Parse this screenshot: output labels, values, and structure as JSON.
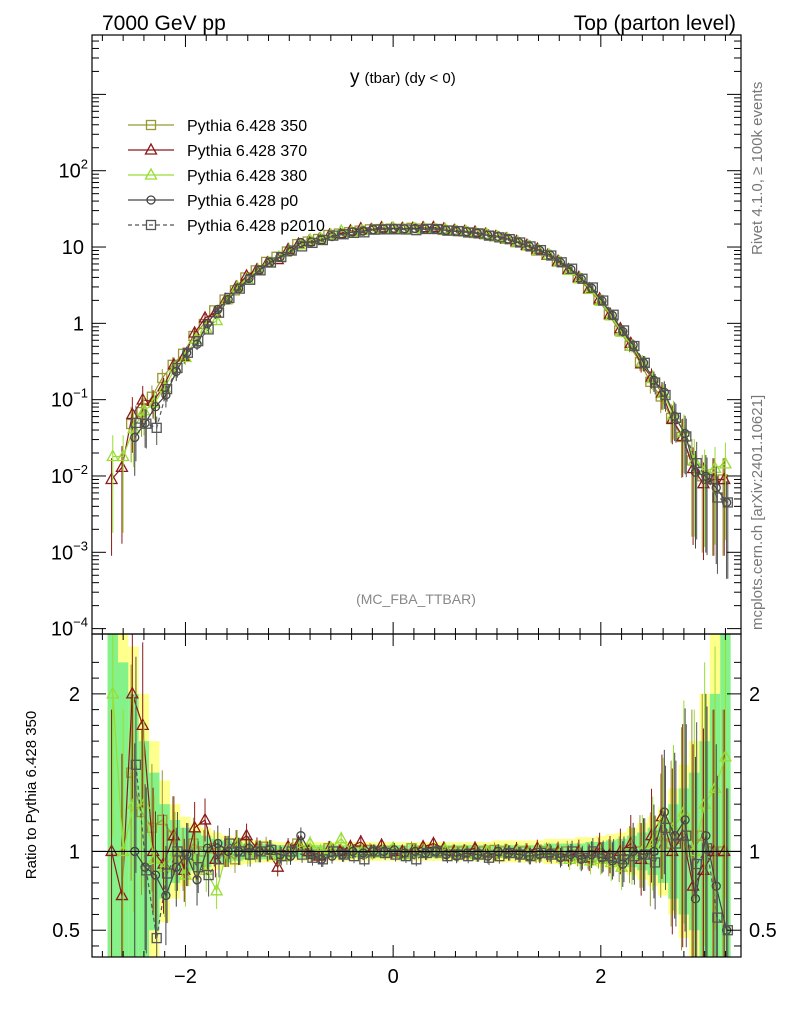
{
  "header": {
    "left": "7000 GeV pp",
    "right": "Top (parton level)"
  },
  "side_labels": {
    "rivet": "Rivet 4.1.0, ≥ 100k events",
    "source": "mcplots.cern.ch [arXiv:2401.10621]"
  },
  "chart_data": {
    "type": "line",
    "title": "y (tbar) (dy < 0)",
    "title_main": "y",
    "title_rest": "(tbar) (dy < 0)",
    "watermark": "(MC_FBA_TTBAR)",
    "x_range": [
      -2.9,
      3.35
    ],
    "x_ticks": [
      -2,
      0,
      2
    ],
    "x_tick_labels": [
      "−2",
      "0",
      "2"
    ],
    "main_panel": {
      "yscale": "log",
      "ylim": [
        8.5e-05,
        6000
      ],
      "y_ticks": [
        0.0001,
        0.001,
        0.01,
        0.1,
        1,
        10,
        100
      ],
      "y_tick_labels": [
        {
          "base": "10",
          "exp": "−4"
        },
        {
          "base": "10",
          "exp": "−3"
        },
        {
          "base": "10",
          "exp": "−2"
        },
        {
          "base": "10",
          "exp": "−1"
        },
        {
          "base": "1",
          "exp": ""
        },
        {
          "base": "10",
          "exp": ""
        },
        {
          "base": "10",
          "exp": "2"
        }
      ]
    },
    "ratio_panel": {
      "ylabel": "Ratio to Pythia 6.428 350",
      "ylim": [
        0.33,
        2.38
      ],
      "y_ticks": [
        0.5,
        1,
        2
      ],
      "y_tick_labels": [
        "0.5",
        "1",
        "2"
      ],
      "reference_line": 1
    },
    "legend": {
      "position": "top-left",
      "entries": [
        {
          "label": "Pythia 6.428 350",
          "color": "#999933",
          "marker": "square",
          "dash": "solid"
        },
        {
          "label": "Pythia 6.428 370",
          "color": "#8b1a1a",
          "marker": "triangle",
          "dash": "solid"
        },
        {
          "label": "Pythia 6.428 380",
          "color": "#99dd33",
          "marker": "triangle",
          "dash": "solid"
        },
        {
          "label": "Pythia 6.428 p0",
          "color": "#444444",
          "marker": "circle",
          "dash": "solid"
        },
        {
          "label": "Pythia 6.428 p2010",
          "color": "#555555",
          "marker": "square",
          "dash": "dashed"
        }
      ]
    },
    "x": [
      -2.7,
      -2.6,
      -2.5,
      -2.4,
      -2.3,
      -2.2,
      -2.1,
      -2.0,
      -1.9,
      -1.8,
      -1.7,
      -1.6,
      -1.5,
      -1.4,
      -1.3,
      -1.2,
      -1.1,
      -1.0,
      -0.9,
      -0.8,
      -0.7,
      -0.6,
      -0.5,
      -0.4,
      -0.3,
      -0.2,
      -0.1,
      0.0,
      0.1,
      0.2,
      0.3,
      0.4,
      0.5,
      0.6,
      0.7,
      0.8,
      0.9,
      1.0,
      1.1,
      1.2,
      1.3,
      1.4,
      1.5,
      1.6,
      1.7,
      1.8,
      1.9,
      2.0,
      2.1,
      2.2,
      2.3,
      2.4,
      2.5,
      2.6,
      2.7,
      2.8,
      2.9,
      3.0,
      3.1,
      3.2
    ],
    "reference": [
      0.009,
      0.018,
      0.032,
      0.055,
      0.095,
      0.16,
      0.26,
      0.42,
      0.65,
      0.98,
      1.45,
      2.05,
      2.85,
      3.8,
      4.95,
      6.2,
      7.6,
      9.0,
      10.4,
      11.8,
      13.0,
      14.1,
      15.0,
      15.8,
      16.4,
      16.9,
      17.2,
      17.4,
      17.5,
      17.5,
      17.4,
      17.2,
      16.9,
      16.5,
      16.0,
      15.4,
      14.7,
      13.8,
      12.8,
      11.7,
      10.5,
      9.2,
      7.9,
      6.5,
      5.2,
      4.0,
      2.95,
      2.05,
      1.35,
      0.85,
      0.52,
      0.31,
      0.18,
      0.1,
      0.055,
      0.03,
      0.016,
      0.009,
      0.009,
      0.009
    ],
    "series": [
      {
        "name": "Pythia 6.428 350",
        "ratio": [
          null,
          null,
          1.5,
          1.25,
          1.15,
          1.2,
          1.1,
          0.95,
          1.05,
          1.0,
          1.02,
          1.0,
          0.95,
          1.05,
          1.0,
          1.03,
          0.98,
          0.97,
          1.05,
          1.0,
          0.98,
          1.02,
          1.0,
          0.99,
          1.0,
          1.01,
          1.0,
          1.0,
          0.99,
          1.02,
          1.0,
          1.01,
          0.99,
          1.0,
          1.0,
          0.99,
          1.0,
          1.01,
          1.0,
          0.99,
          1.0,
          0.98,
          1.0,
          0.99,
          1.0,
          0.98,
          0.97,
          0.99,
          0.96,
          0.95,
          0.98,
          1.0,
          0.95,
          1.1,
          1.05,
          1.08,
          1.0,
          1.1,
          1.0,
          1.0
        ]
      },
      {
        "name": "Pythia 6.428 370",
        "ratio": [
          1.0,
          0.72,
          2.0,
          1.8,
          1.0,
          0.92,
          1.1,
          0.88,
          1.15,
          1.2,
          0.95,
          1.0,
          1.05,
          1.1,
          1.02,
          1.0,
          0.9,
          1.03,
          1.05,
          1.0,
          0.97,
          1.02,
          1.0,
          1.03,
          1.06,
          1.0,
          1.04,
          1.0,
          1.0,
          1.0,
          1.03,
          1.05,
          1.02,
          1.0,
          1.0,
          1.02,
          1.0,
          0.99,
          1.0,
          1.01,
          1.0,
          1.02,
          0.99,
          1.0,
          0.97,
          1.0,
          0.96,
          1.02,
          0.98,
          1.0,
          1.05,
          0.95,
          1.1,
          1.22,
          1.0,
          1.1,
          0.78,
          0.88,
          1.0,
          1.0
        ]
      },
      {
        "name": "Pythia 6.428 380",
        "ratio": [
          2.0,
          1.0,
          1.3,
          1.3,
          0.95,
          0.9,
          1.0,
          0.85,
          0.95,
          0.88,
          0.75,
          1.0,
          1.05,
          0.98,
          1.0,
          1.0,
          0.97,
          1.0,
          1.03,
          1.05,
          1.0,
          1.02,
          1.08,
          1.0,
          1.0,
          0.99,
          1.0,
          1.02,
          0.98,
          1.0,
          1.0,
          1.0,
          1.01,
          0.99,
          1.0,
          0.98,
          1.0,
          0.99,
          1.0,
          1.0,
          0.98,
          0.99,
          1.0,
          0.98,
          0.95,
          0.96,
          0.94,
          0.95,
          0.93,
          0.9,
          0.97,
          1.0,
          1.05,
          1.2,
          1.15,
          1.25,
          1.0,
          1.3,
          1.4,
          1.6
        ]
      },
      {
        "name": "Pythia 6.428 p0",
        "ratio": [
          null,
          null,
          1.0,
          0.9,
          0.85,
          0.72,
          0.9,
          0.98,
          0.82,
          1.02,
          1.05,
          1.0,
          1.0,
          1.02,
          1.0,
          1.01,
          0.98,
          0.97,
          1.1,
          0.98,
          0.95,
          0.97,
          0.98,
          1.0,
          0.99,
          1.0,
          1.0,
          1.01,
          0.99,
          1.0,
          0.99,
          1.0,
          0.98,
          0.97,
          0.99,
          0.98,
          0.97,
          1.0,
          0.99,
          0.98,
          0.97,
          0.98,
          0.99,
          0.96,
          0.98,
          0.95,
          0.98,
          0.96,
          0.94,
          0.92,
          1.0,
          0.98,
          1.0,
          1.25,
          1.1,
          1.2,
          0.7,
          1.1,
          0.78,
          0.5
        ]
      },
      {
        "name": "Pythia 6.428 p2010",
        "ratio": [
          null,
          null,
          1.55,
          0.88,
          0.45,
          0.86,
          1.0,
          0.98,
          0.9,
          0.85,
          0.95,
          1.05,
          1.0,
          0.98,
          1.0,
          1.01,
          0.97,
          1.0,
          0.98,
          0.96,
          0.95,
          1.0,
          0.98,
          0.97,
          0.95,
          1.0,
          0.99,
          0.98,
          0.97,
          0.95,
          0.99,
          1.0,
          0.97,
          0.98,
          0.97,
          0.98,
          0.96,
          0.97,
          0.99,
          0.98,
          0.97,
          0.99,
          0.98,
          0.97,
          1.0,
          0.96,
          1.0,
          0.97,
          0.96,
          0.95,
          0.97,
          0.98,
          0.93,
          1.15,
          1.05,
          1.1,
          0.92,
          1.02,
          0.58,
          0.5
        ]
      }
    ],
    "ratio_error_band": {
      "dark": [
        1.4,
        1.2,
        1.0,
        0.7,
        0.5,
        0.3,
        0.2,
        0.15,
        0.12,
        0.1,
        0.08,
        0.07,
        0.06,
        0.05,
        0.05,
        0.05,
        0.04,
        0.04,
        0.04,
        0.04,
        0.04,
        0.04,
        0.04,
        0.04,
        0.04,
        0.04,
        0.04,
        0.04,
        0.04,
        0.04,
        0.04,
        0.04,
        0.04,
        0.04,
        0.04,
        0.04,
        0.04,
        0.04,
        0.04,
        0.04,
        0.04,
        0.04,
        0.05,
        0.05,
        0.05,
        0.05,
        0.06,
        0.06,
        0.07,
        0.08,
        0.1,
        0.12,
        0.15,
        0.2,
        0.3,
        0.4,
        0.5,
        0.7,
        1.0,
        1.4
      ],
      "light": [
        2.0,
        1.6,
        1.3,
        1.0,
        0.7,
        0.45,
        0.3,
        0.22,
        0.18,
        0.15,
        0.12,
        0.1,
        0.09,
        0.08,
        0.07,
        0.07,
        0.06,
        0.06,
        0.06,
        0.06,
        0.06,
        0.06,
        0.06,
        0.06,
        0.06,
        0.06,
        0.06,
        0.06,
        0.06,
        0.06,
        0.06,
        0.06,
        0.06,
        0.06,
        0.06,
        0.06,
        0.06,
        0.07,
        0.07,
        0.07,
        0.07,
        0.07,
        0.08,
        0.08,
        0.08,
        0.09,
        0.09,
        0.1,
        0.11,
        0.12,
        0.15,
        0.18,
        0.22,
        0.28,
        0.4,
        0.55,
        0.7,
        1.0,
        1.4,
        2.0
      ]
    }
  }
}
